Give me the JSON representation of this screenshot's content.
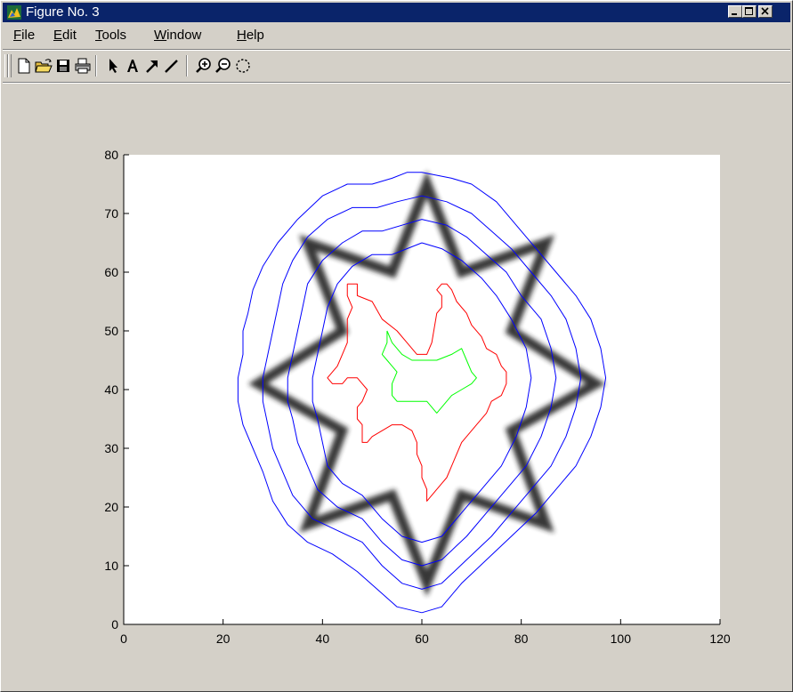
{
  "window": {
    "title": "Figure No. 3",
    "icon": "matlab-figure-icon"
  },
  "title_buttons": {
    "minimize_icon": "minimize-icon",
    "maximize_icon": "maximize-icon",
    "close_icon": "close-icon"
  },
  "menu": {
    "items": [
      {
        "label": "File",
        "accel": "F",
        "rest": "ile"
      },
      {
        "label": "Edit",
        "accel": "E",
        "rest": "dit"
      },
      {
        "label": "Tools",
        "accel": "T",
        "rest": "ools"
      },
      {
        "label": "Window",
        "accel": "W",
        "rest": "indow"
      },
      {
        "label": "Help",
        "accel": "H",
        "rest": "elp"
      }
    ]
  },
  "toolbar": {
    "tools": [
      {
        "name": "new-figure",
        "icon": "new-document-icon"
      },
      {
        "name": "open-file",
        "icon": "open-folder-icon"
      },
      {
        "name": "save",
        "icon": "save-disk-icon"
      },
      {
        "name": "print",
        "icon": "printer-icon"
      },
      {
        "name": "select",
        "icon": "arrow-cursor-icon"
      },
      {
        "name": "insert-text",
        "icon": "text-a-icon"
      },
      {
        "name": "insert-arrow",
        "icon": "insert-arrow-icon"
      },
      {
        "name": "insert-line",
        "icon": "insert-line-icon"
      },
      {
        "name": "zoom-in",
        "icon": "zoom-in-icon"
      },
      {
        "name": "zoom-out",
        "icon": "zoom-out-icon"
      },
      {
        "name": "rotate-3d",
        "icon": "rotate-3d-icon"
      }
    ]
  },
  "chart_data": {
    "type": "line",
    "title": "",
    "xlabel": "",
    "ylabel": "",
    "xlim": [
      0,
      120
    ],
    "ylim": [
      0,
      80
    ],
    "xticks": [
      0,
      20,
      40,
      60,
      80,
      100,
      120
    ],
    "yticks": [
      0,
      10,
      20,
      30,
      40,
      50,
      60,
      70,
      80
    ],
    "grid": false,
    "background_image": "blurred eight-pointed star outline (grayscale)",
    "star": {
      "points": [
        [
          61,
          75
        ],
        [
          68,
          60
        ],
        [
          85,
          65
        ],
        [
          78,
          50
        ],
        [
          95,
          41
        ],
        [
          78,
          33
        ],
        [
          85,
          17
        ],
        [
          68,
          22
        ],
        [
          61,
          7
        ],
        [
          54,
          22
        ],
        [
          37,
          17
        ],
        [
          44,
          33
        ],
        [
          27,
          41
        ],
        [
          44,
          50
        ],
        [
          37,
          65
        ],
        [
          54,
          60
        ]
      ],
      "color": "#222222"
    },
    "series": [
      {
        "color": "#0000ff",
        "points": [
          [
            60,
            77
          ],
          [
            66,
            76
          ],
          [
            70,
            75
          ],
          [
            75,
            72
          ],
          [
            79,
            68
          ],
          [
            83,
            64
          ],
          [
            87,
            60
          ],
          [
            91,
            56
          ],
          [
            94,
            52
          ],
          [
            96,
            47
          ],
          [
            97,
            42
          ],
          [
            96,
            37
          ],
          [
            94,
            32
          ],
          [
            91,
            27
          ],
          [
            87,
            23
          ],
          [
            83,
            19
          ],
          [
            78,
            15
          ],
          [
            73,
            11
          ],
          [
            68,
            7
          ],
          [
            64,
            3
          ],
          [
            60,
            2
          ],
          [
            55,
            3
          ],
          [
            51,
            6
          ],
          [
            47,
            9
          ],
          [
            42,
            12
          ],
          [
            37,
            14
          ],
          [
            33,
            17
          ],
          [
            30,
            21
          ],
          [
            28,
            26
          ],
          [
            26,
            30
          ],
          [
            24,
            34
          ],
          [
            23,
            38
          ],
          [
            23,
            42
          ],
          [
            24,
            46
          ],
          [
            24,
            50
          ],
          [
            25,
            53
          ],
          [
            26,
            57
          ],
          [
            28,
            61
          ],
          [
            31,
            65
          ],
          [
            35,
            69
          ],
          [
            40,
            73
          ],
          [
            45,
            75
          ],
          [
            50,
            75
          ],
          [
            54,
            76
          ],
          [
            57,
            77
          ],
          [
            60,
            77
          ]
        ]
      },
      {
        "color": "#0000ff",
        "points": [
          [
            60,
            73
          ],
          [
            65,
            72
          ],
          [
            70,
            70
          ],
          [
            74,
            67
          ],
          [
            78,
            64
          ],
          [
            82,
            60
          ],
          [
            86,
            56
          ],
          [
            89,
            52
          ],
          [
            91,
            47
          ],
          [
            92,
            42
          ],
          [
            91,
            37
          ],
          [
            89,
            32
          ],
          [
            86,
            27
          ],
          [
            82,
            23
          ],
          [
            78,
            19
          ],
          [
            74,
            15
          ],
          [
            69,
            11
          ],
          [
            64,
            7
          ],
          [
            60,
            6
          ],
          [
            56,
            7
          ],
          [
            52,
            10
          ],
          [
            48,
            14
          ],
          [
            43,
            16
          ],
          [
            38,
            18
          ],
          [
            34,
            22
          ],
          [
            32,
            26
          ],
          [
            30,
            30
          ],
          [
            29,
            34
          ],
          [
            28,
            38
          ],
          [
            28,
            42
          ],
          [
            29,
            46
          ],
          [
            30,
            50
          ],
          [
            31,
            54
          ],
          [
            32,
            58
          ],
          [
            34,
            62
          ],
          [
            37,
            66
          ],
          [
            41,
            69
          ],
          [
            46,
            71
          ],
          [
            51,
            71
          ],
          [
            55,
            72
          ],
          [
            60,
            73
          ]
        ]
      },
      {
        "color": "#0000ff",
        "points": [
          [
            60,
            69
          ],
          [
            65,
            68
          ],
          [
            69,
            66
          ],
          [
            73,
            63
          ],
          [
            77,
            60
          ],
          [
            80,
            56
          ],
          [
            84,
            52
          ],
          [
            86,
            47
          ],
          [
            87,
            42
          ],
          [
            86,
            37
          ],
          [
            84,
            32
          ],
          [
            81,
            27
          ],
          [
            77,
            23
          ],
          [
            73,
            19
          ],
          [
            69,
            15
          ],
          [
            64,
            11
          ],
          [
            60,
            10
          ],
          [
            56,
            11
          ],
          [
            52,
            14
          ],
          [
            48,
            18
          ],
          [
            43,
            20
          ],
          [
            39,
            23
          ],
          [
            37,
            27
          ],
          [
            35,
            31
          ],
          [
            34,
            35
          ],
          [
            33,
            38
          ],
          [
            33,
            42
          ],
          [
            34,
            46
          ],
          [
            35,
            50
          ],
          [
            36,
            54
          ],
          [
            37,
            58
          ],
          [
            40,
            62
          ],
          [
            44,
            65
          ],
          [
            48,
            67
          ],
          [
            52,
            67
          ],
          [
            56,
            68
          ],
          [
            60,
            69
          ]
        ]
      },
      {
        "color": "#0000ff",
        "points": [
          [
            60,
            65
          ],
          [
            64,
            64
          ],
          [
            68,
            62
          ],
          [
            72,
            59
          ],
          [
            75,
            56
          ],
          [
            78,
            52
          ],
          [
            81,
            47
          ],
          [
            82,
            42
          ],
          [
            81,
            37
          ],
          [
            79,
            32
          ],
          [
            76,
            27
          ],
          [
            72,
            23
          ],
          [
            68,
            19
          ],
          [
            64,
            15
          ],
          [
            60,
            14
          ],
          [
            56,
            15
          ],
          [
            52,
            18
          ],
          [
            48,
            22
          ],
          [
            44,
            24
          ],
          [
            41,
            27
          ],
          [
            40,
            31
          ],
          [
            39,
            35
          ],
          [
            38,
            38
          ],
          [
            38,
            42
          ],
          [
            39,
            46
          ],
          [
            40,
            50
          ],
          [
            41,
            54
          ],
          [
            43,
            58
          ],
          [
            46,
            61
          ],
          [
            50,
            63
          ],
          [
            54,
            63
          ],
          [
            57,
            64
          ],
          [
            60,
            65
          ]
        ]
      },
      {
        "color": "#ff0000",
        "points": [
          [
            45,
            58
          ],
          [
            47,
            58
          ],
          [
            47,
            56
          ],
          [
            50,
            55
          ],
          [
            52,
            52
          ],
          [
            55,
            50
          ],
          [
            57,
            48
          ],
          [
            59,
            46
          ],
          [
            61,
            46
          ],
          [
            62,
            48
          ],
          [
            63,
            53
          ],
          [
            64,
            54
          ],
          [
            64,
            56
          ],
          [
            63,
            57
          ],
          [
            64,
            58
          ],
          [
            65,
            58
          ],
          [
            66,
            57
          ],
          [
            67,
            55
          ],
          [
            69,
            53
          ],
          [
            70,
            51
          ],
          [
            72,
            49
          ],
          [
            73,
            47
          ],
          [
            75,
            46
          ],
          [
            76,
            44
          ],
          [
            77,
            43
          ],
          [
            77,
            41
          ],
          [
            76,
            39
          ],
          [
            74,
            38
          ],
          [
            73,
            36
          ],
          [
            71,
            34
          ],
          [
            70,
            33
          ],
          [
            69,
            32
          ],
          [
            68,
            31
          ],
          [
            67,
            29
          ],
          [
            66,
            27
          ],
          [
            65,
            25
          ],
          [
            64,
            24
          ],
          [
            63,
            23
          ],
          [
            62,
            22
          ],
          [
            61,
            21
          ],
          [
            61,
            23
          ],
          [
            60,
            25
          ],
          [
            60,
            27
          ],
          [
            59,
            29
          ],
          [
            59,
            31
          ],
          [
            58,
            33
          ],
          [
            56,
            34
          ],
          [
            54,
            34
          ],
          [
            52,
            33
          ],
          [
            50,
            32
          ],
          [
            49,
            31
          ],
          [
            48,
            31
          ],
          [
            48,
            33
          ],
          [
            48,
            34
          ],
          [
            47,
            35
          ],
          [
            47,
            37
          ],
          [
            48,
            38
          ],
          [
            49,
            40
          ],
          [
            48,
            41
          ],
          [
            47,
            42
          ],
          [
            45,
            42
          ],
          [
            44,
            41
          ],
          [
            42,
            41
          ],
          [
            41,
            42
          ],
          [
            42,
            43
          ],
          [
            43,
            44
          ],
          [
            44,
            46
          ],
          [
            45,
            48
          ],
          [
            45,
            50
          ],
          [
            45,
            52
          ],
          [
            46,
            54
          ],
          [
            45,
            56
          ],
          [
            45,
            58
          ]
        ]
      },
      {
        "color": "#00ff00",
        "points": [
          [
            53,
            50
          ],
          [
            54,
            48
          ],
          [
            56,
            46
          ],
          [
            58,
            45
          ],
          [
            60,
            45
          ],
          [
            63,
            45
          ],
          [
            66,
            46
          ],
          [
            68,
            47
          ],
          [
            69,
            45
          ],
          [
            70,
            43
          ],
          [
            71,
            42
          ],
          [
            70,
            41
          ],
          [
            68,
            40
          ],
          [
            66,
            39
          ],
          [
            65,
            38
          ],
          [
            64,
            37
          ],
          [
            63,
            36
          ],
          [
            62,
            37
          ],
          [
            61,
            38
          ],
          [
            59,
            38
          ],
          [
            57,
            38
          ],
          [
            55,
            38
          ],
          [
            54,
            39
          ],
          [
            54,
            41
          ],
          [
            55,
            43
          ],
          [
            54,
            44
          ],
          [
            53,
            45
          ],
          [
            52,
            46
          ],
          [
            53,
            48
          ],
          [
            53,
            50
          ]
        ]
      }
    ]
  }
}
